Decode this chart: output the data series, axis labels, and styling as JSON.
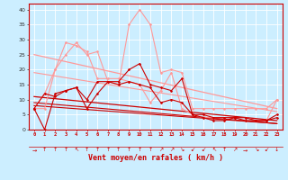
{
  "background_color": "#cceeff",
  "grid_color": "#ffffff",
  "xlabel": "Vent moyen/en rafales ( km/h )",
  "xlabel_color": "#cc0000",
  "xlabel_fontsize": 6,
  "ylabel_ticks": [
    0,
    5,
    10,
    15,
    20,
    25,
    30,
    35,
    40
  ],
  "xlim": [
    -0.5,
    23.5
  ],
  "ylim": [
    0,
    42
  ],
  "xtick_labels": [
    "0",
    "1",
    "2",
    "3",
    "4",
    "5",
    "6",
    "7",
    "8",
    "9",
    "10",
    "11",
    "12",
    "13",
    "14",
    "15",
    "16",
    "17",
    "18",
    "19",
    "20",
    "21",
    "22",
    "23"
  ],
  "lines": [
    {
      "x": [
        0,
        1,
        2,
        3,
        4,
        5,
        6,
        7,
        8,
        9,
        10,
        11,
        12,
        13,
        14,
        15,
        16,
        17,
        18,
        19,
        20,
        21,
        22,
        23
      ],
      "y": [
        7,
        0,
        12,
        13,
        14,
        7,
        12,
        16,
        16,
        20,
        22,
        15,
        14,
        13,
        17,
        5,
        5,
        4,
        4,
        4,
        4,
        3,
        3,
        4
      ],
      "color": "#cc0000",
      "lw": 0.8,
      "marker": "D",
      "ms": 1.5,
      "zorder": 4
    },
    {
      "x": [
        0,
        1,
        2,
        3,
        4,
        5,
        6,
        7,
        8,
        9,
        10,
        11,
        12,
        13,
        14,
        15,
        16,
        17,
        18,
        19,
        20,
        21,
        22,
        23
      ],
      "y": [
        7,
        12,
        11,
        13,
        14,
        10,
        16,
        16,
        15,
        16,
        15,
        14,
        9,
        10,
        9,
        5,
        4,
        3,
        3,
        4,
        3,
        3,
        3,
        5
      ],
      "color": "#cc0000",
      "lw": 0.8,
      "marker": "D",
      "ms": 1.5,
      "zorder": 4
    },
    {
      "x": [
        0,
        1,
        2,
        3,
        4,
        5,
        6,
        7,
        8,
        9,
        10,
        11,
        12,
        13,
        14,
        15,
        16,
        17,
        18,
        19,
        20,
        21,
        22,
        23
      ],
      "y": [
        7,
        12,
        20,
        25,
        29,
        25,
        26,
        16,
        15,
        35,
        40,
        35,
        19,
        20,
        19,
        7,
        7,
        7,
        7,
        7,
        7,
        7,
        7,
        10
      ],
      "color": "#ff9999",
      "lw": 0.8,
      "marker": "D",
      "ms": 1.5,
      "zorder": 3
    },
    {
      "x": [
        0,
        1,
        2,
        3,
        4,
        5,
        6,
        7,
        8,
        9,
        10,
        11,
        12,
        13,
        14,
        15,
        16,
        17,
        18,
        19,
        20,
        21,
        22,
        23
      ],
      "y": [
        7,
        7,
        20,
        29,
        28,
        26,
        17,
        17,
        17,
        16,
        15,
        9,
        13,
        19,
        7,
        5,
        4,
        4,
        4,
        4,
        4,
        3,
        3,
        10
      ],
      "color": "#ff9999",
      "lw": 0.8,
      "marker": "D",
      "ms": 1.5,
      "zorder": 3
    },
    {
      "x": [
        0,
        23
      ],
      "y": [
        25,
        7
      ],
      "color": "#ff9999",
      "lw": 0.9,
      "marker": null,
      "ms": 0,
      "zorder": 2
    },
    {
      "x": [
        0,
        23
      ],
      "y": [
        19,
        6
      ],
      "color": "#ff9999",
      "lw": 0.8,
      "marker": null,
      "ms": 0,
      "zorder": 2
    },
    {
      "x": [
        0,
        23
      ],
      "y": [
        11,
        3
      ],
      "color": "#cc0000",
      "lw": 0.9,
      "marker": null,
      "ms": 0,
      "zorder": 2
    },
    {
      "x": [
        0,
        23
      ],
      "y": [
        9,
        2
      ],
      "color": "#cc0000",
      "lw": 0.8,
      "marker": null,
      "ms": 0,
      "zorder": 2
    },
    {
      "x": [
        0,
        23
      ],
      "y": [
        8,
        2
      ],
      "color": "#cc0000",
      "lw": 0.8,
      "marker": null,
      "ms": 0,
      "zorder": 2
    }
  ],
  "arrows": [
    "→",
    "↑",
    "↑",
    "↑",
    "↖",
    "↑",
    "↑",
    "↑",
    "↑",
    "↑",
    "↑",
    "↑",
    "↗",
    "↗",
    "↘",
    "↙",
    "↙",
    "↖",
    "↑",
    "↗",
    "→",
    "↘",
    "↙",
    "↓"
  ]
}
